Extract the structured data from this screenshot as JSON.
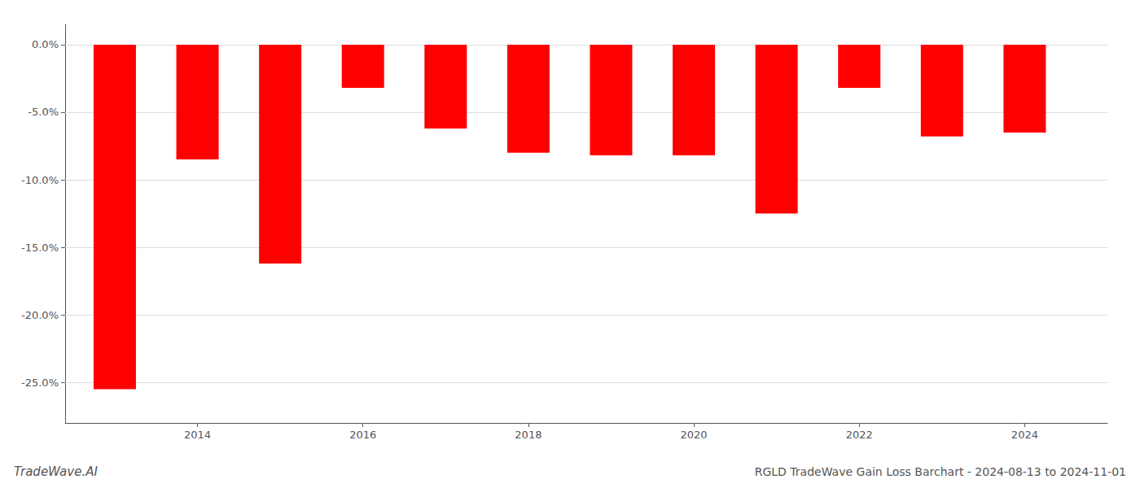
{
  "chart_data": {
    "type": "bar",
    "title": "RGLD TradeWave Gain Loss Barchart - 2024-08-13 to 2024-11-01",
    "annotations": [
      "TradeWave.AI"
    ],
    "x": [
      2013,
      2014,
      2015,
      2016,
      2017,
      2018,
      2019,
      2020,
      2021,
      2022,
      2023,
      2024
    ],
    "values": [
      -0.255,
      -0.085,
      -0.162,
      -0.032,
      -0.062,
      -0.08,
      -0.082,
      -0.082,
      -0.125,
      -0.032,
      -0.068,
      -0.065
    ],
    "color": "#ff0000",
    "xlim": [
      2012.4,
      2025.0
    ],
    "xticks": [
      2014,
      2016,
      2018,
      2020,
      2022,
      2024
    ],
    "ylim": [
      -0.28,
      0.015
    ],
    "yticks": [
      {
        "value": 0.0,
        "label": "0.0%"
      },
      {
        "value": -0.05,
        "label": "-5.0%"
      },
      {
        "value": -0.1,
        "label": "-10.0%"
      },
      {
        "value": -0.15,
        "label": "-15.0%"
      },
      {
        "value": -0.2,
        "label": "-20.0%"
      },
      {
        "value": -0.25,
        "label": "-25.0%"
      }
    ],
    "grid": true
  }
}
